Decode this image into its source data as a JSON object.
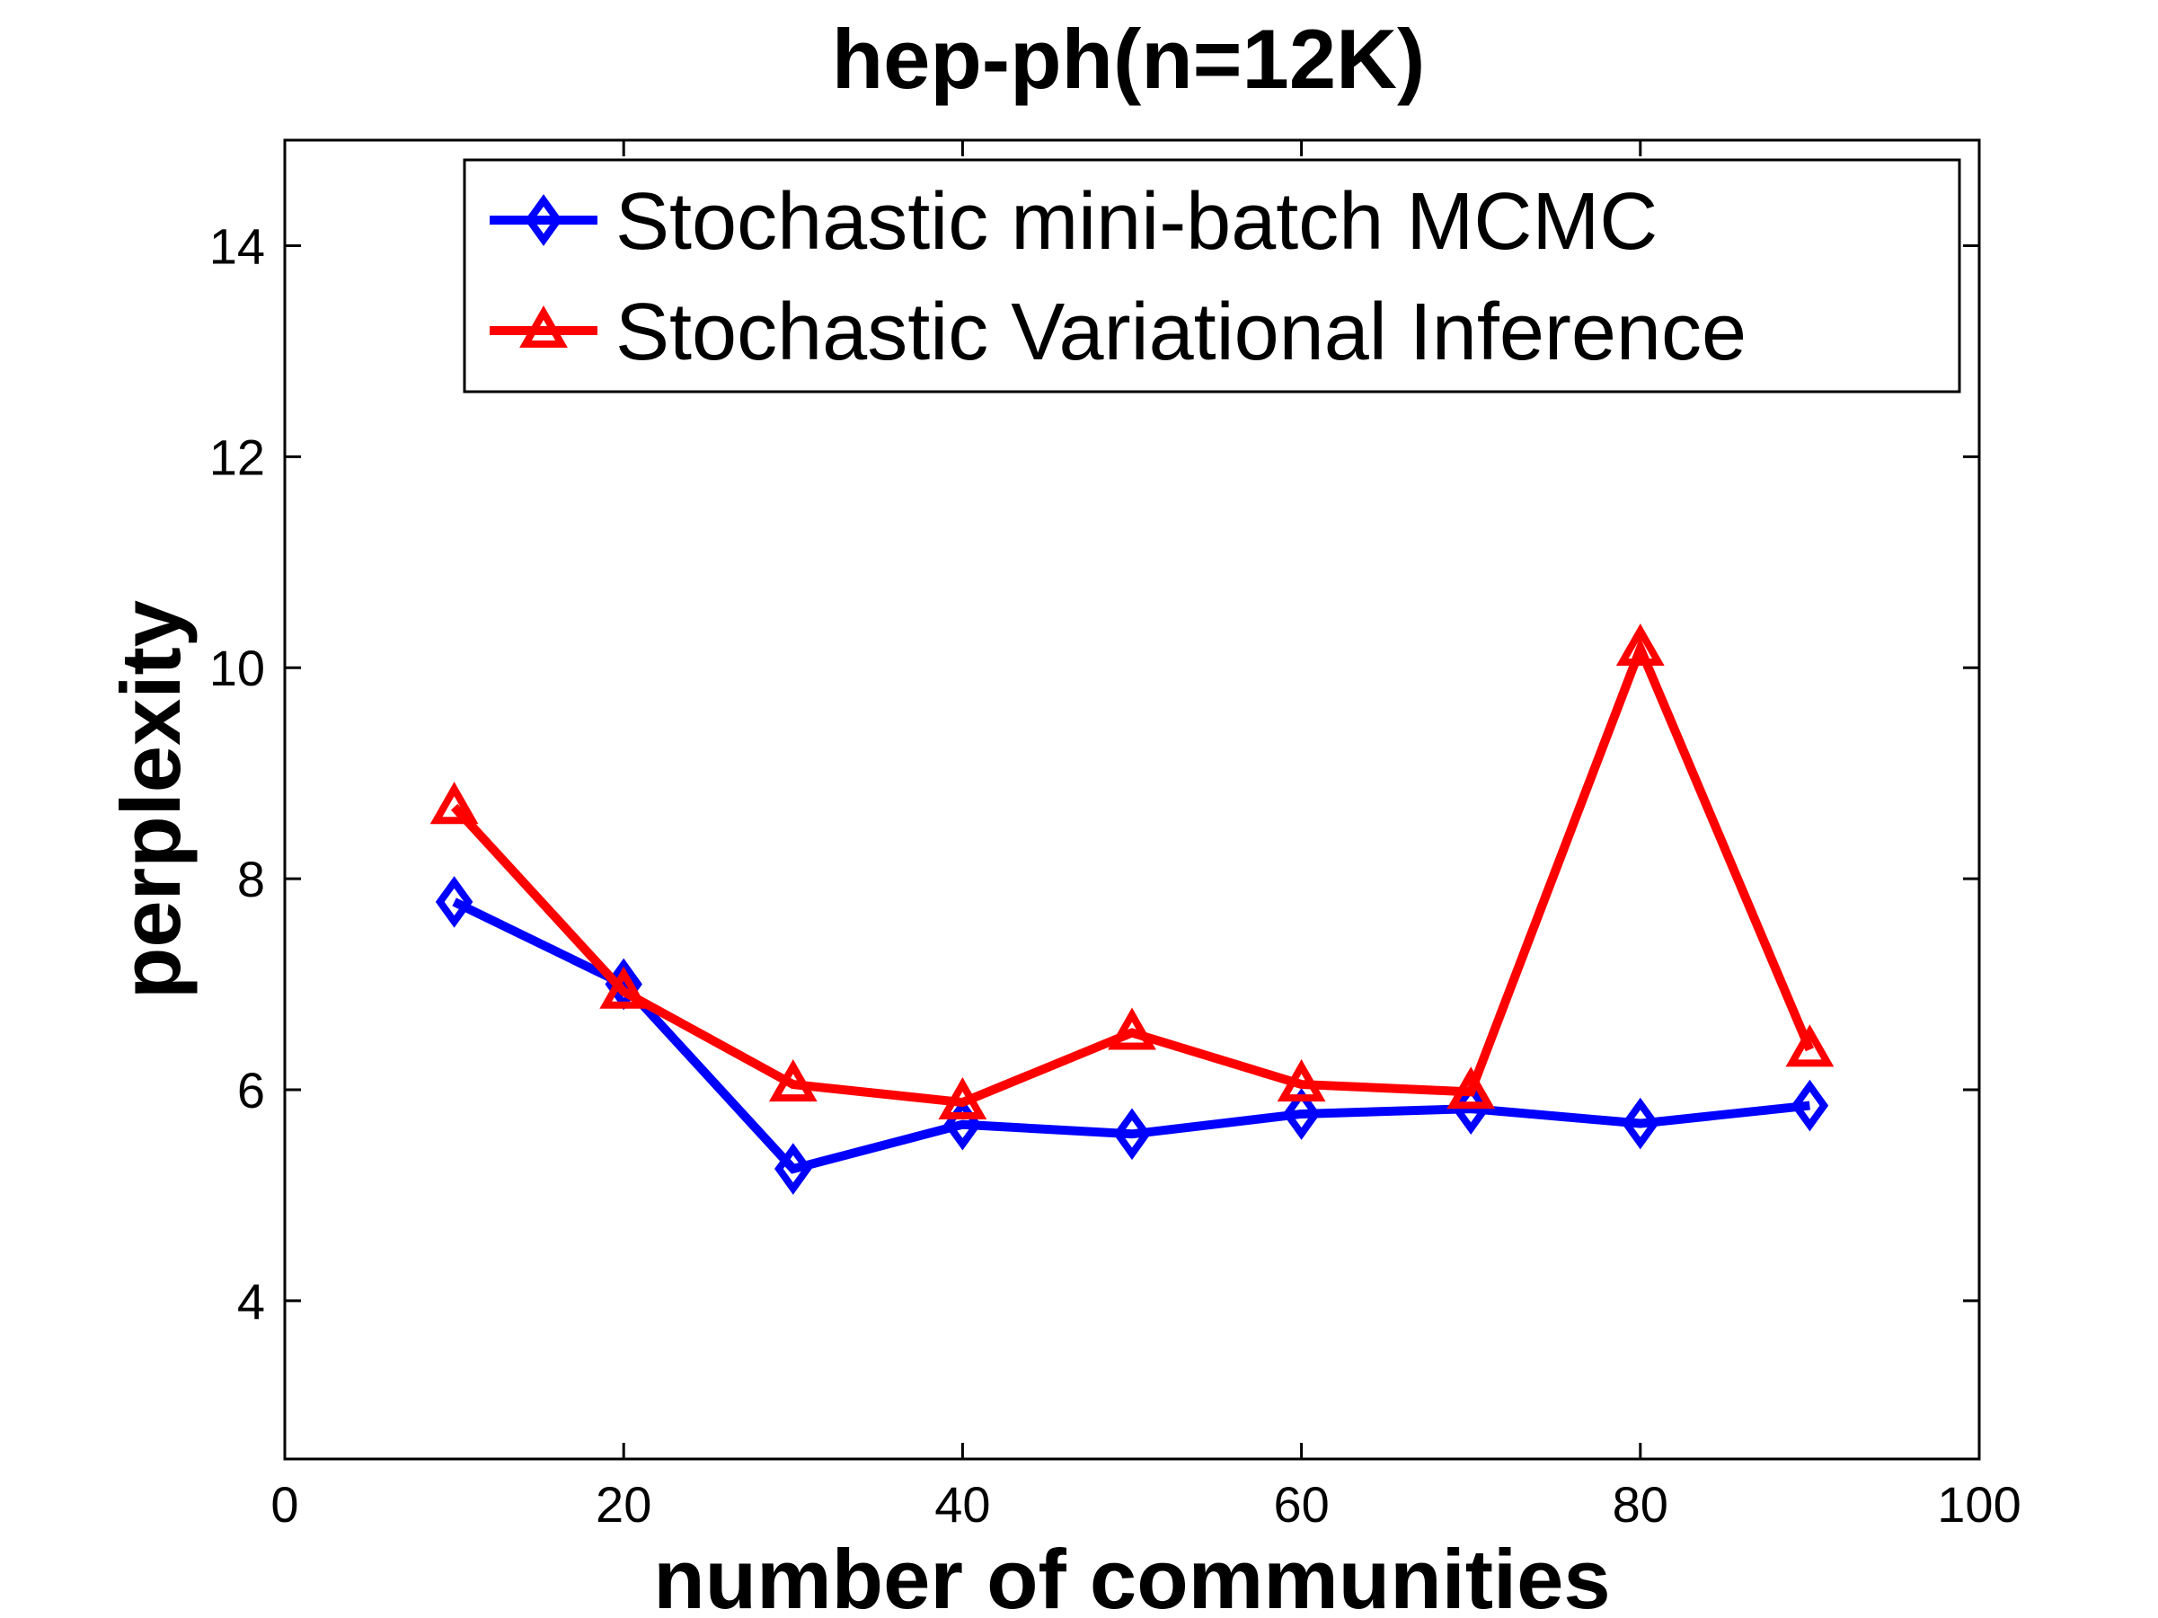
{
  "chart_data": {
    "type": "line",
    "title": "hep-ph(n=12K)",
    "xlabel": "number of communities",
    "ylabel": "perplexity",
    "xlim": [
      0,
      100
    ],
    "ylim": [
      2.5,
      15
    ],
    "xticks": [
      0,
      20,
      40,
      60,
      80,
      100
    ],
    "yticks": [
      4,
      6,
      8,
      10,
      12,
      14
    ],
    "grid": false,
    "legend_position": "top-right",
    "x": [
      10,
      20,
      30,
      40,
      50,
      60,
      70,
      80,
      90
    ],
    "series": [
      {
        "name": "Stochastic mini-batch MCMC",
        "color": "#0000ff",
        "marker": "diamond",
        "values": [
          7.78,
          7.0,
          5.25,
          5.67,
          5.58,
          5.77,
          5.82,
          5.68,
          5.85
        ]
      },
      {
        "name": "Stochastic Variational Inference",
        "color": "#ff0000",
        "marker": "triangle",
        "values": [
          8.68,
          6.93,
          6.05,
          5.88,
          6.54,
          6.05,
          5.98,
          10.18,
          6.38
        ]
      }
    ]
  }
}
